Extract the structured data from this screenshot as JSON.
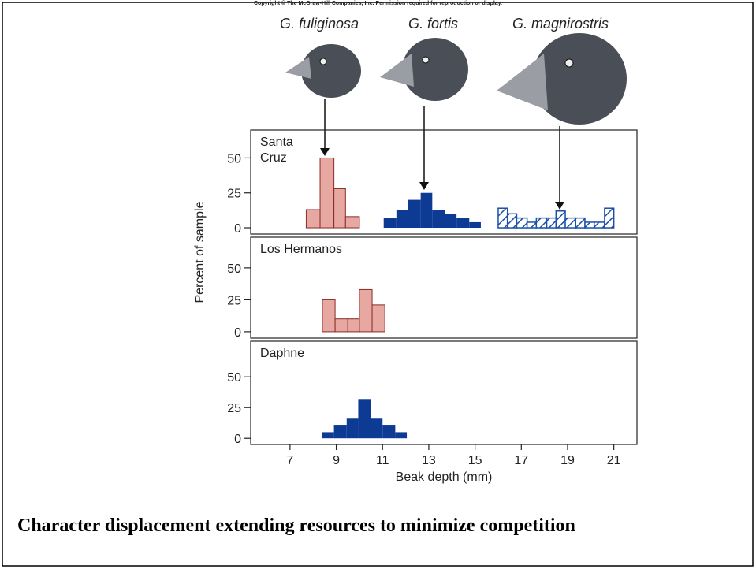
{
  "copyright": "Copyright © The McGraw-Hill Companies, Inc. Permission required for reproduction or display.",
  "species": [
    "G. fuliginosa",
    "G. fortis",
    "G. magnirostris"
  ],
  "caption": "Character displacement extending resources to minimize competition",
  "chart_data": {
    "type": "histogram",
    "ylabel": "Percent of sample",
    "xlabel": "Beak depth (mm)",
    "xlim": [
      5.3,
      22
    ],
    "xticks": [
      7,
      9,
      11,
      13,
      15,
      17,
      19,
      21
    ],
    "panels": [
      {
        "title": "Santa Cruz",
        "ylim": [
          -4.5,
          70
        ],
        "yticks": [
          0,
          25,
          50
        ],
        "series": [
          {
            "color": "#e8a8a2",
            "bins": [
              7.7,
              8.3,
              8.9,
              9.4,
              10.0
            ],
            "values": [
              13,
              50,
              28,
              8
            ]
          },
          {
            "color": "#0d3b94",
            "bins": [
              11.05,
              11.6,
              12.1,
              12.65,
              13.15,
              13.7,
              14.2,
              14.75,
              15.25
            ],
            "values": [
              7,
              13,
              20,
              25,
              13,
              10,
              7,
              4
            ]
          },
          {
            "color": "#1c4fa8",
            "hatch": true,
            "bins": [
              16.0,
              16.4,
              16.8,
              17.25,
              17.65,
              18.1,
              18.5,
              18.9,
              19.35,
              19.75,
              20.15,
              20.6,
              21.0
            ],
            "values": [
              14,
              10,
              7,
              4,
              7,
              7,
              12,
              7,
              7,
              4,
              4,
              14
            ]
          }
        ]
      },
      {
        "title": "Los Hermanos",
        "ylim": [
          -5,
          74
        ],
        "yticks": [
          0,
          25,
          50
        ],
        "series": [
          {
            "color": "#e8a8a2",
            "bins": [
              8.4,
              8.95,
              9.5,
              10.0,
              10.55,
              11.1
            ],
            "values": [
              25,
              10,
              10,
              33,
              21
            ]
          }
        ]
      },
      {
        "title": "Daphne",
        "ylim": [
          -5,
          79
        ],
        "yticks": [
          0,
          25,
          50
        ],
        "series": [
          {
            "color": "#0d3b94",
            "bins": [
              8.4,
              8.9,
              9.45,
              9.95,
              10.5,
              11.0,
              11.55,
              12.05
            ],
            "values": [
              5,
              11,
              16,
              32,
              16,
              11,
              5
            ]
          }
        ]
      }
    ]
  }
}
